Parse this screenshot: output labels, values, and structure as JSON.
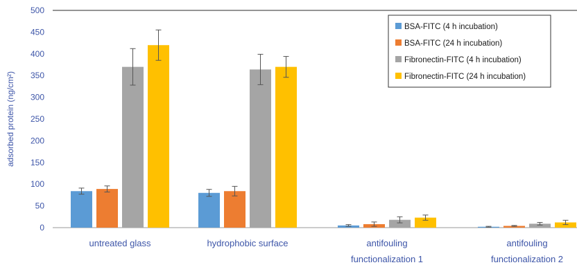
{
  "chart_data": {
    "type": "bar",
    "ylabel": "adsorbed protein (ng/cm²)",
    "ylim": [
      0,
      500
    ],
    "yticks": [
      0,
      50,
      100,
      150,
      200,
      250,
      300,
      350,
      400,
      450,
      500
    ],
    "grid": false,
    "legend_position": "top-right",
    "categories": [
      [
        "untreated glass"
      ],
      [
        "hydrophobic surface"
      ],
      [
        "antifouling",
        "functionalization 1"
      ],
      [
        "antifouling",
        "functionalization 2"
      ]
    ],
    "series": [
      {
        "name": "BSA-FITC (4 h incubation)",
        "color": "#5b9bd5",
        "values": [
          84,
          80,
          5,
          2
        ],
        "errors": [
          7,
          8,
          2,
          1
        ]
      },
      {
        "name": "BSA-FITC (24 h incubation)",
        "color": "#ed7d31",
        "values": [
          89,
          84,
          8,
          4
        ],
        "errors": [
          7,
          11,
          5,
          1
        ]
      },
      {
        "name": "Fibronectin-FITC (4 h incubation)",
        "color": "#a5a5a5",
        "values": [
          370,
          364,
          18,
          9
        ],
        "errors": [
          42,
          35,
          7,
          3
        ]
      },
      {
        "name": "Fibronectin-FITC (24 h incubation)",
        "color": "#ffc000",
        "values": [
          420,
          370,
          23,
          12
        ],
        "errors": [
          35,
          24,
          6,
          5
        ]
      }
    ]
  }
}
